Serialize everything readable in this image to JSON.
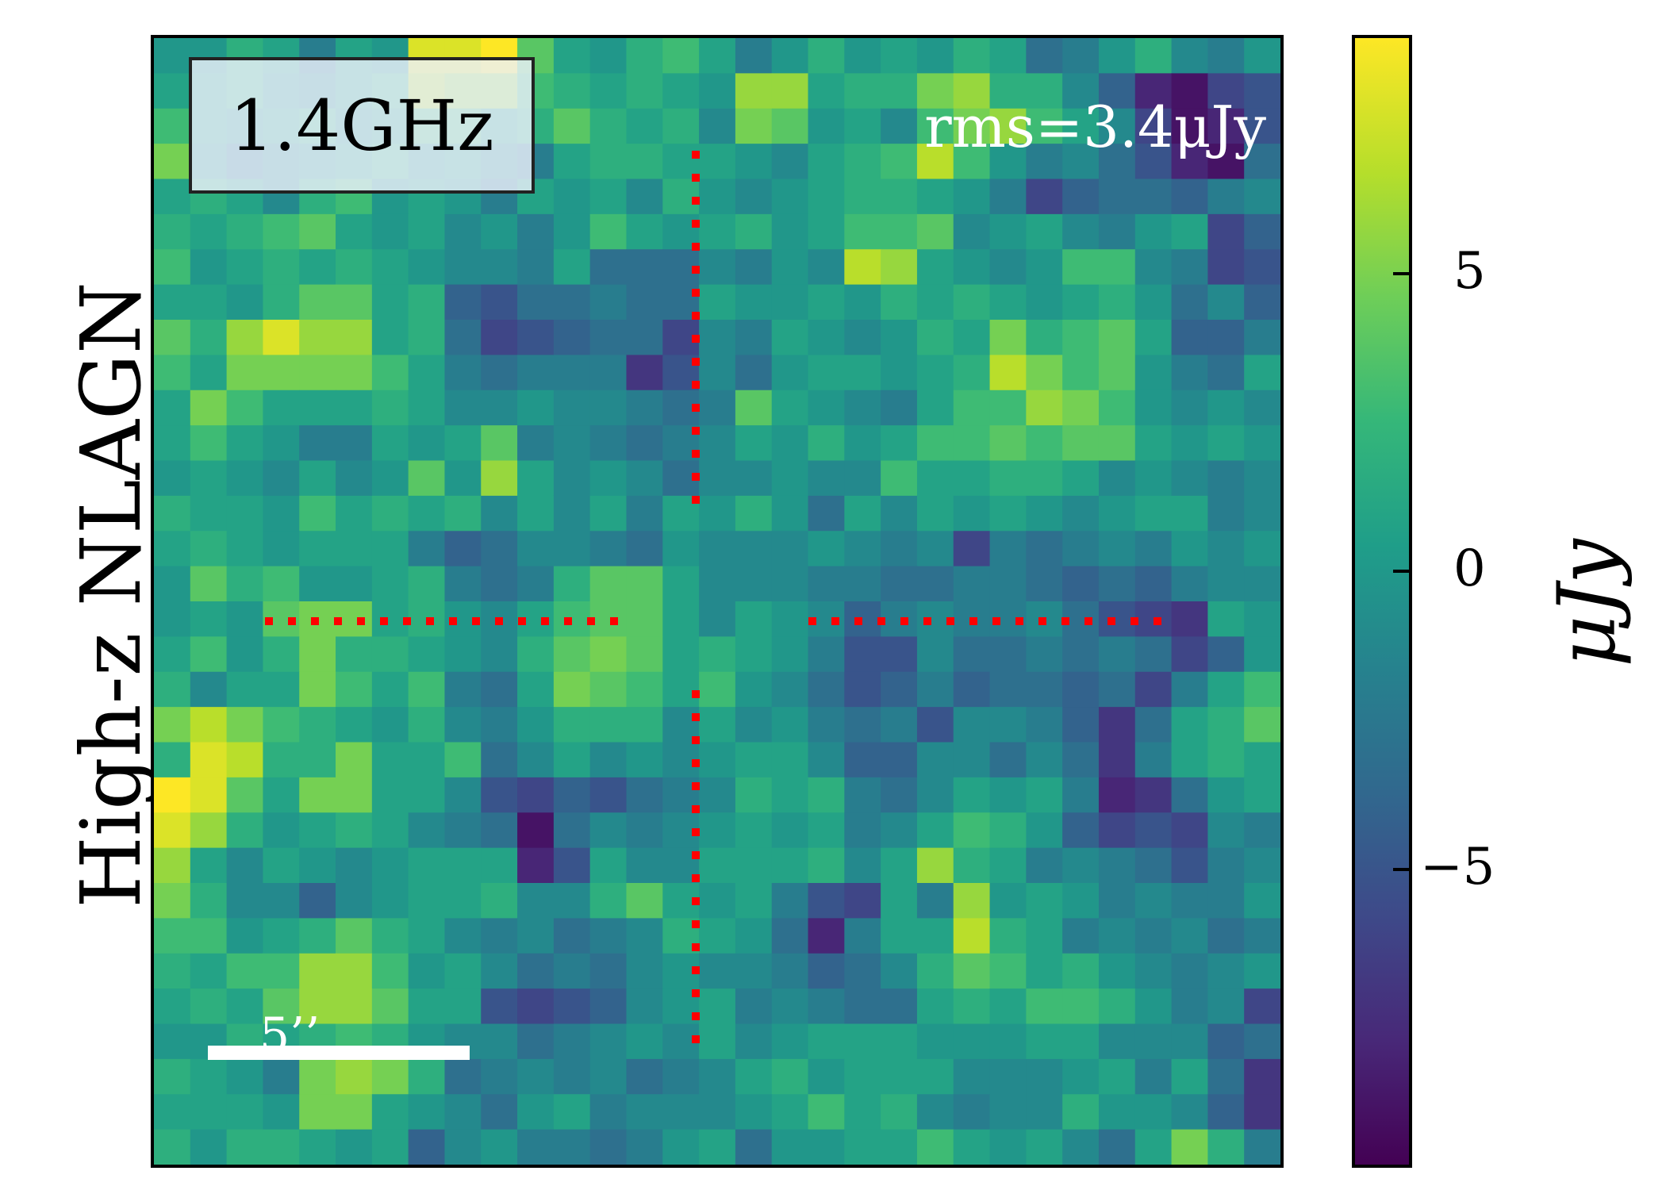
{
  "panel": {
    "row_label": "High-z NLAGN",
    "frequency_label": "1.4GHz",
    "rms_label": "rms=3.4μJy",
    "scalebar_label": "5’’"
  },
  "colors": {
    "marker": "#ff0000",
    "annotation_text": "#ffffff"
  },
  "chart_data": {
    "type": "heatmap",
    "colormap": "viridis",
    "grid": "off",
    "zlim": [
      -10,
      9
    ],
    "colorbar": {
      "label": "μJy",
      "ticks": [
        5,
        0,
        -5
      ],
      "tick_labels": [
        "5",
        "0",
        "−5"
      ]
    },
    "values": [
      [
        0,
        0,
        2,
        1,
        -2,
        1,
        0,
        8,
        8,
        9,
        4,
        1,
        0,
        2,
        3,
        1,
        -2,
        0,
        2,
        0,
        1,
        0,
        2,
        1,
        -3,
        -2,
        0,
        2,
        -1,
        -2,
        0
      ],
      [
        1,
        1,
        2,
        0,
        -1,
        1,
        2,
        7,
        6,
        6,
        3,
        2,
        1,
        2,
        1,
        0,
        6,
        6,
        1,
        2,
        2,
        5,
        6,
        2,
        2,
        -1,
        -4,
        -8,
        -9,
        -6,
        -5
      ],
      [
        3,
        1,
        0,
        1,
        2,
        0,
        1,
        3,
        3,
        1,
        2,
        4,
        2,
        1,
        2,
        -1,
        5,
        4,
        0,
        1,
        -1,
        3,
        5,
        6,
        3,
        1,
        -1,
        -6,
        -9,
        -8,
        -5
      ],
      [
        5,
        0,
        -2,
        -1,
        0,
        1,
        2,
        0,
        1,
        -1,
        -2,
        1,
        2,
        2,
        1,
        1,
        0,
        -1,
        1,
        2,
        3,
        7,
        3,
        0,
        -2,
        -1,
        -3,
        -5,
        -8,
        -9,
        -3
      ],
      [
        1,
        2,
        1,
        -1,
        2,
        3,
        0,
        1,
        0,
        -2,
        1,
        0,
        1,
        -1,
        2,
        0,
        -1,
        0,
        1,
        2,
        2,
        1,
        0,
        -2,
        -6,
        -4,
        -3,
        -3,
        -4,
        -2,
        -1
      ],
      [
        2,
        1,
        2,
        3,
        4,
        1,
        0,
        1,
        -1,
        0,
        -2,
        0,
        3,
        1,
        0,
        1,
        2,
        0,
        1,
        3,
        3,
        4,
        -1,
        0,
        1,
        -1,
        -2,
        0,
        1,
        -6,
        -4
      ],
      [
        3,
        0,
        1,
        2,
        1,
        2,
        1,
        0,
        -1,
        -1,
        -2,
        1,
        -3,
        -3,
        -3,
        -1,
        -2,
        0,
        -1,
        7,
        6,
        1,
        0,
        -1,
        0,
        3,
        3,
        -1,
        -2,
        -6,
        -5
      ],
      [
        1,
        1,
        0,
        2,
        4,
        4,
        1,
        2,
        -4,
        -5,
        -3,
        -3,
        -2,
        -3,
        -3,
        1,
        0,
        0,
        1,
        0,
        2,
        1,
        2,
        1,
        0,
        1,
        2,
        0,
        -3,
        -1,
        -4
      ],
      [
        4,
        2,
        6,
        8,
        6,
        6,
        1,
        2,
        -3,
        -6,
        -5,
        -4,
        -3,
        -3,
        -6,
        -1,
        -2,
        1,
        0,
        -1,
        0,
        2,
        1,
        5,
        2,
        3,
        4,
        1,
        -4,
        -4,
        -2
      ],
      [
        3,
        1,
        5,
        5,
        5,
        5,
        3,
        1,
        -2,
        -3,
        -2,
        -2,
        -2,
        -7,
        -5,
        -1,
        -3,
        0,
        1,
        1,
        0,
        1,
        2,
        7,
        5,
        3,
        4,
        0,
        -2,
        -3,
        1
      ],
      [
        1,
        5,
        3,
        1,
        1,
        1,
        2,
        1,
        -1,
        -1,
        0,
        -1,
        -1,
        -2,
        -3,
        -2,
        4,
        1,
        0,
        -1,
        -2,
        1,
        3,
        3,
        6,
        5,
        3,
        0,
        -1,
        0,
        -1
      ],
      [
        1,
        3,
        1,
        0,
        -2,
        -2,
        1,
        0,
        1,
        4,
        -2,
        -1,
        -2,
        -3,
        -2,
        -1,
        1,
        0,
        2,
        0,
        1,
        3,
        3,
        4,
        3,
        4,
        4,
        1,
        0,
        1,
        0
      ],
      [
        0,
        1,
        0,
        -1,
        1,
        -1,
        0,
        4,
        0,
        6,
        1,
        -1,
        0,
        -1,
        -3,
        -1,
        -1,
        0,
        -1,
        -1,
        3,
        1,
        1,
        2,
        2,
        1,
        -1,
        0,
        -1,
        -2,
        -1
      ],
      [
        2,
        1,
        1,
        0,
        3,
        1,
        2,
        1,
        2,
        -1,
        1,
        -1,
        1,
        -2,
        1,
        0,
        2,
        0,
        -3,
        1,
        -1,
        1,
        0,
        1,
        0,
        -1,
        0,
        1,
        1,
        -2,
        -1
      ],
      [
        1,
        2,
        1,
        0,
        1,
        1,
        1,
        -2,
        -4,
        -3,
        -1,
        -1,
        -2,
        -3,
        0,
        -1,
        -1,
        -1,
        0,
        -1,
        -2,
        -1,
        -6,
        -2,
        -3,
        -2,
        -1,
        -2,
        0,
        -1,
        0
      ],
      [
        0,
        4,
        2,
        3,
        0,
        0,
        1,
        2,
        -2,
        -3,
        -2,
        2,
        4,
        4,
        1,
        -1,
        -1,
        -1,
        -2,
        -2,
        -3,
        -3,
        -2,
        -2,
        -3,
        -4,
        -3,
        -4,
        -2,
        -1,
        -1
      ],
      [
        0,
        1,
        0,
        4,
        5,
        5,
        1,
        2,
        0,
        -1,
        1,
        3,
        4,
        4,
        1,
        -1,
        1,
        0,
        -1,
        -4,
        -2,
        -1,
        -2,
        -2,
        -1,
        -3,
        -5,
        -6,
        -7,
        1,
        0
      ],
      [
        1,
        3,
        0,
        2,
        5,
        2,
        2,
        1,
        0,
        -1,
        2,
        4,
        5,
        4,
        1,
        2,
        1,
        0,
        -2,
        -5,
        -5,
        -1,
        -3,
        -3,
        -2,
        -3,
        -2,
        -3,
        -6,
        -4,
        0
      ],
      [
        2,
        -1,
        1,
        1,
        5,
        3,
        1,
        3,
        -2,
        -3,
        1,
        5,
        4,
        3,
        1,
        3,
        0,
        -1,
        -3,
        -5,
        -4,
        -2,
        -4,
        -3,
        -3,
        -4,
        -3,
        -6,
        -2,
        1,
        3
      ],
      [
        5,
        7,
        5,
        3,
        2,
        1,
        0,
        2,
        -1,
        -2,
        0,
        2,
        2,
        2,
        -1,
        1,
        -1,
        0,
        -2,
        -3,
        -2,
        -5,
        -1,
        -1,
        -2,
        -4,
        -7,
        -3,
        1,
        2,
        4
      ],
      [
        2,
        8,
        7,
        2,
        2,
        5,
        1,
        1,
        3,
        -3,
        -1,
        1,
        -1,
        0,
        -1,
        0,
        1,
        1,
        -1,
        -4,
        -4,
        -1,
        -1,
        -3,
        -1,
        -3,
        -7,
        -2,
        1,
        2,
        1
      ],
      [
        9,
        8,
        4,
        1,
        5,
        5,
        1,
        1,
        -1,
        -5,
        -6,
        -4,
        -5,
        -3,
        -2,
        -1,
        2,
        1,
        2,
        -2,
        -3,
        -1,
        1,
        0,
        1,
        -2,
        -8,
        -7,
        -3,
        0,
        1
      ],
      [
        8,
        6,
        2,
        0,
        1,
        2,
        1,
        -1,
        -2,
        -3,
        -9,
        -3,
        -1,
        -2,
        -1,
        0,
        1,
        0,
        1,
        -2,
        -1,
        1,
        3,
        2,
        0,
        -4,
        -6,
        -5,
        -6,
        -1,
        -2
      ],
      [
        6,
        1,
        -1,
        1,
        0,
        -1,
        0,
        1,
        1,
        1,
        -8,
        -5,
        1,
        -1,
        -1,
        1,
        1,
        1,
        2,
        -1,
        1,
        6,
        2,
        1,
        -2,
        -1,
        -2,
        -3,
        -5,
        -2,
        -1
      ],
      [
        5,
        2,
        -1,
        -1,
        -4,
        -1,
        0,
        1,
        1,
        2,
        -1,
        -1,
        2,
        4,
        1,
        0,
        1,
        -2,
        -5,
        -6,
        1,
        -2,
        6,
        0,
        1,
        0,
        -2,
        -1,
        -2,
        -2,
        0
      ],
      [
        3,
        3,
        0,
        1,
        2,
        4,
        2,
        1,
        -1,
        -2,
        -1,
        -3,
        -2,
        -1,
        2,
        1,
        0,
        -3,
        -8,
        -2,
        1,
        1,
        7,
        2,
        1,
        -2,
        -1,
        -2,
        -1,
        -3,
        -2
      ],
      [
        2,
        1,
        3,
        3,
        6,
        6,
        3,
        0,
        1,
        -1,
        -3,
        -2,
        -3,
        -1,
        0,
        -1,
        -1,
        -2,
        -4,
        -3,
        -1,
        2,
        4,
        3,
        1,
        2,
        0,
        -1,
        -2,
        -1,
        0
      ],
      [
        1,
        2,
        1,
        4,
        6,
        6,
        4,
        1,
        1,
        -5,
        -6,
        -5,
        -4,
        -1,
        0,
        1,
        -2,
        -1,
        -2,
        -3,
        -3,
        1,
        2,
        1,
        3,
        3,
        2,
        0,
        -2,
        -1,
        -6
      ],
      [
        0,
        0,
        2,
        1,
        2,
        3,
        2,
        0,
        -1,
        -1,
        -3,
        -2,
        -1,
        0,
        -1,
        1,
        -1,
        0,
        1,
        1,
        1,
        0,
        0,
        0,
        1,
        1,
        -1,
        -1,
        -1,
        -4,
        -3
      ],
      [
        2,
        1,
        0,
        -2,
        5,
        6,
        5,
        2,
        -3,
        -2,
        -1,
        -2,
        -1,
        -3,
        -2,
        -1,
        1,
        2,
        0,
        1,
        1,
        1,
        -1,
        -1,
        -1,
        0,
        1,
        -2,
        1,
        -3,
        -7
      ],
      [
        1,
        1,
        1,
        0,
        5,
        5,
        1,
        0,
        -1,
        -3,
        0,
        1,
        -2,
        -1,
        -1,
        -1,
        0,
        1,
        3,
        1,
        2,
        -1,
        -2,
        -1,
        -1,
        2,
        0,
        0,
        -1,
        -4,
        -7
      ],
      [
        2,
        0,
        2,
        2,
        1,
        0,
        1,
        -4,
        -1,
        0,
        -2,
        -2,
        -3,
        -2,
        0,
        1,
        -3,
        0,
        0,
        1,
        1,
        3,
        1,
        0,
        1,
        -1,
        -3,
        1,
        5,
        2,
        -2
      ]
    ]
  }
}
